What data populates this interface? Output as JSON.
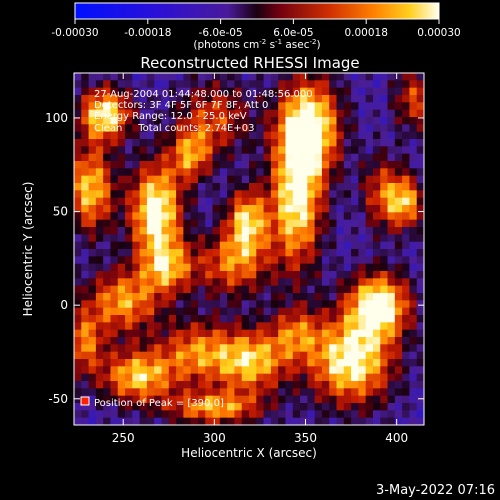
{
  "chart_data": {
    "type": "heatmap",
    "title": "Reconstructed RHESSI Image",
    "xlabel": "Heliocentric X (arcsec)",
    "ylabel": "Heliocentric Y (arcsec)",
    "xlim": [
      223,
      415
    ],
    "ylim": [
      -64,
      124
    ],
    "x_ticks": [
      "250",
      "300",
      "350",
      "400"
    ],
    "x_tick_values": [
      250,
      300,
      350,
      400
    ],
    "y_ticks": [
      "-50",
      "0",
      "50",
      "100"
    ],
    "y_tick_values": [
      -50,
      0,
      50,
      100
    ],
    "colorbar": {
      "min": -0.0003,
      "max": 0.0003,
      "tick_labels": [
        "-0.00030",
        "-0.00018",
        "-6.0e-05",
        "6.0e-05",
        "0.00018",
        "0.00030"
      ],
      "unit_parts": [
        "(photons cm",
        "-2",
        " s",
        "-1",
        " asec",
        "-2",
        ")"
      ]
    },
    "info_lines": [
      "27-Aug-2004 01:44:48.000 to 01:48:56.000",
      "Detectors: 3F 4F 5F 6F 7F 8F, Att 0",
      "Energy Range: 12.0 - 25.0 keV",
      "Clean     Total counts: 2.74E+03"
    ],
    "peak_label": "Position of Peak = [390,0]",
    "peak_position": [
      390,
      0
    ],
    "colors": {
      "background": "#000000",
      "text": "#ffffff",
      "box_border": "#ffffff"
    },
    "source_blobs": [
      {
        "x": 240,
        "y": 102,
        "sx": 10,
        "sy": 10,
        "a": 0.9
      },
      {
        "x": 232,
        "y": 62,
        "sx": 9,
        "sy": 16,
        "a": 0.8
      },
      {
        "x": 268,
        "y": 50,
        "sx": 10,
        "sy": 18,
        "a": 1.0
      },
      {
        "x": 287,
        "y": 80,
        "sx": 8,
        "sy": 10,
        "a": 0.6
      },
      {
        "x": 300,
        "y": 100,
        "sx": 14,
        "sy": 14,
        "a": 0.5
      },
      {
        "x": 318,
        "y": 45,
        "sx": 8,
        "sy": 12,
        "a": 0.8
      },
      {
        "x": 310,
        "y": 22,
        "sx": 14,
        "sy": 12,
        "a": 0.6
      },
      {
        "x": 352,
        "y": 95,
        "sx": 12,
        "sy": 18,
        "a": 1.0
      },
      {
        "x": 345,
        "y": 55,
        "sx": 10,
        "sy": 25,
        "a": 0.9
      },
      {
        "x": 392,
        "y": 60,
        "sx": 8,
        "sy": 14,
        "a": 0.5
      },
      {
        "x": 405,
        "y": 55,
        "sx": 7,
        "sy": 10,
        "a": 0.7
      },
      {
        "x": 390,
        "y": 0,
        "sx": 12,
        "sy": 12,
        "a": 1.0
      },
      {
        "x": 375,
        "y": -30,
        "sx": 16,
        "sy": 16,
        "a": 0.95
      },
      {
        "x": 250,
        "y": 2,
        "sx": 14,
        "sy": 12,
        "a": 0.7
      },
      {
        "x": 258,
        "y": -38,
        "sx": 14,
        "sy": 10,
        "a": 0.8
      },
      {
        "x": 290,
        "y": -25,
        "sx": 14,
        "sy": 12,
        "a": 0.6
      },
      {
        "x": 320,
        "y": -30,
        "sx": 14,
        "sy": 12,
        "a": 0.8
      },
      {
        "x": 300,
        "y": -55,
        "sx": 18,
        "sy": 6,
        "a": 0.7
      },
      {
        "x": 345,
        "y": -15,
        "sx": 10,
        "sy": 10,
        "a": 0.5
      },
      {
        "x": 275,
        "y": 20,
        "sx": 10,
        "sy": 10,
        "a": 0.6
      },
      {
        "x": 410,
        "y": 110,
        "sx": 8,
        "sy": 12,
        "a": 0.5
      },
      {
        "x": 228,
        "y": -20,
        "sx": 8,
        "sy": 12,
        "a": 0.6
      }
    ]
  }
}
